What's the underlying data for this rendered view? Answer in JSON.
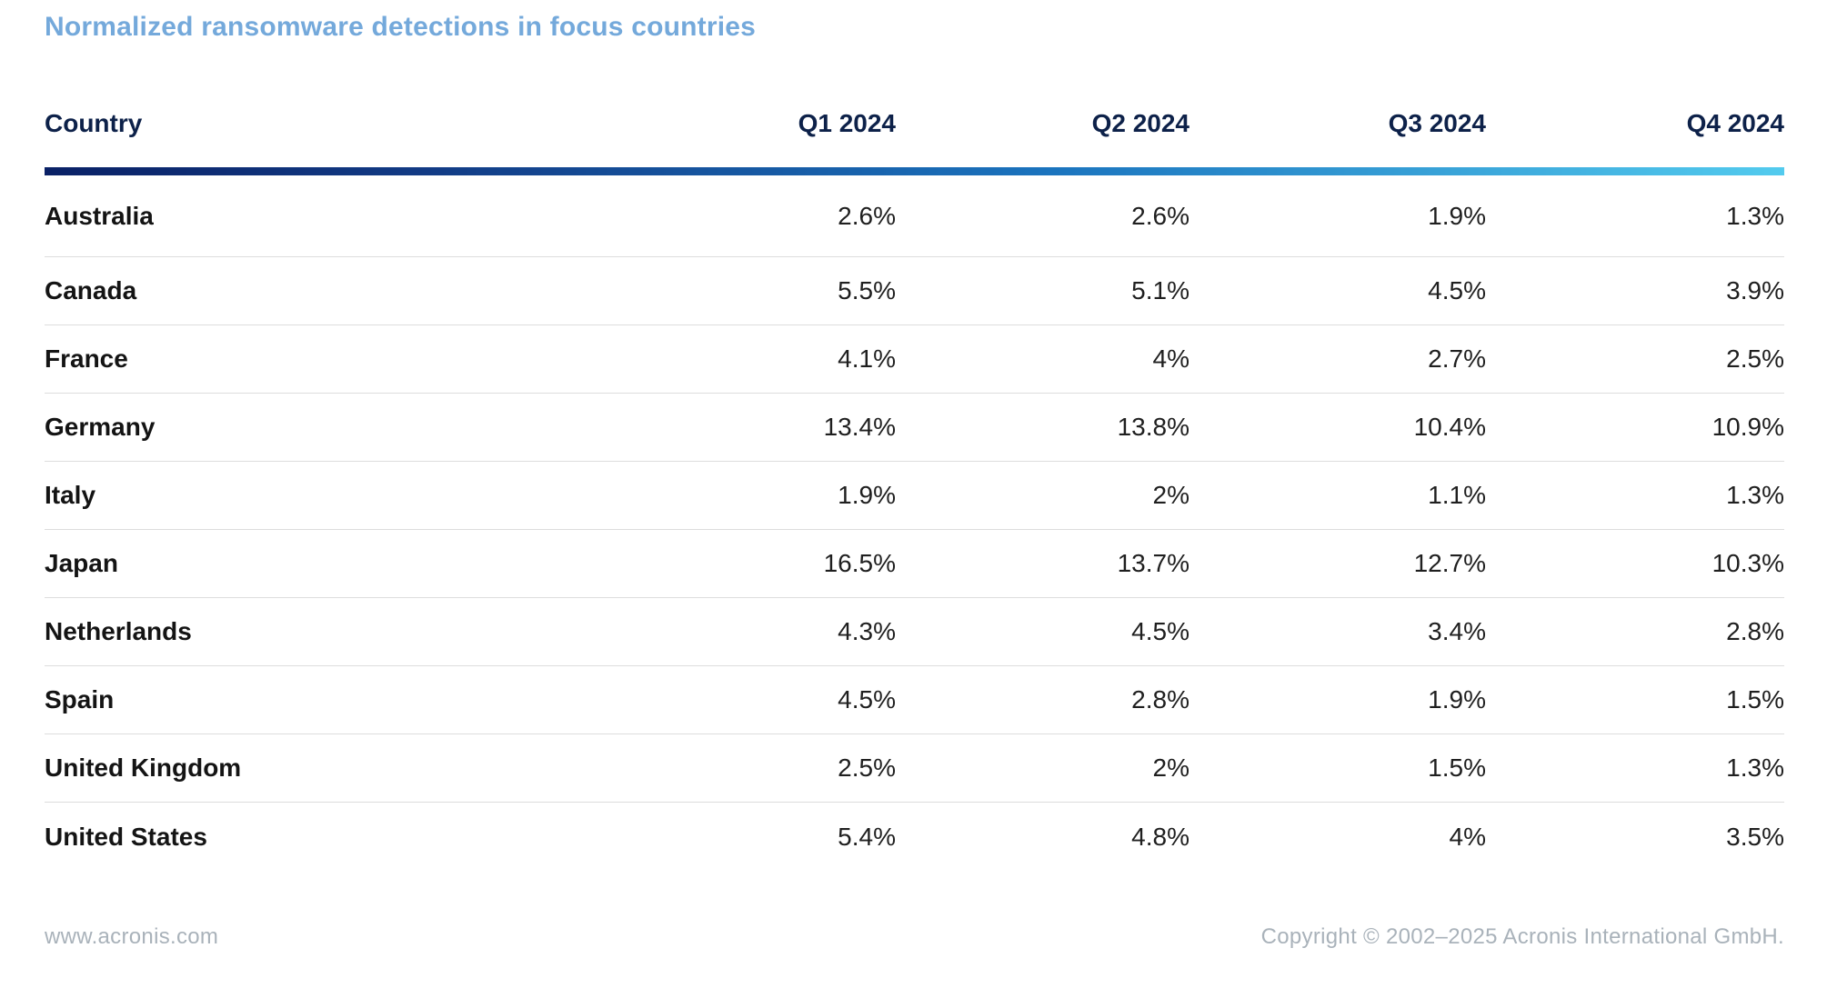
{
  "title": "Normalized ransomware detections in focus countries",
  "chart_data": {
    "type": "table",
    "title": "Normalized ransomware detections in focus countries",
    "columns": [
      "Country",
      "Q1 2024",
      "Q2 2024",
      "Q3 2024",
      "Q4 2024"
    ],
    "rows": [
      {
        "country": "Australia",
        "values": [
          "2.6%",
          "2.6%",
          "1.9%",
          "1.3%"
        ]
      },
      {
        "country": "Canada",
        "values": [
          "5.5%",
          "5.1%",
          "4.5%",
          "3.9%"
        ]
      },
      {
        "country": "France",
        "values": [
          "4.1%",
          "4%",
          "2.7%",
          "2.5%"
        ]
      },
      {
        "country": "Germany",
        "values": [
          "13.4%",
          "13.8%",
          "10.4%",
          "10.9%"
        ]
      },
      {
        "country": "Italy",
        "values": [
          "1.9%",
          "2%",
          "1.1%",
          "1.3%"
        ]
      },
      {
        "country": "Japan",
        "values": [
          "16.5%",
          "13.7%",
          "12.7%",
          "10.3%"
        ]
      },
      {
        "country": "Netherlands",
        "values": [
          "4.3%",
          "4.5%",
          "3.4%",
          "2.8%"
        ]
      },
      {
        "country": "Spain",
        "values": [
          "4.5%",
          "2.8%",
          "1.9%",
          "1.5%"
        ]
      },
      {
        "country": "United Kingdom",
        "values": [
          "2.5%",
          "2%",
          "1.5%",
          "1.3%"
        ]
      },
      {
        "country": "United States",
        "values": [
          "5.4%",
          "4.8%",
          "4%",
          "3.5%"
        ]
      }
    ],
    "values_unit": "%",
    "legend_position": "none",
    "grid": "horizontal-row-separators"
  },
  "footer": {
    "website": "www.acronis.com",
    "copyright": "Copyright © 2002–2025 Acronis International GmbH."
  },
  "colors": {
    "title_text": "#74a9db",
    "header_text": "#0d2149",
    "body_text": "#1a1a1a",
    "row_separator": "#dddddd",
    "footer_text": "#a9b2ba",
    "accent_bar_gradient_start": "#0a2166",
    "accent_bar_gradient_mid": "#1b74be",
    "accent_bar_gradient_end": "#53cbee"
  }
}
